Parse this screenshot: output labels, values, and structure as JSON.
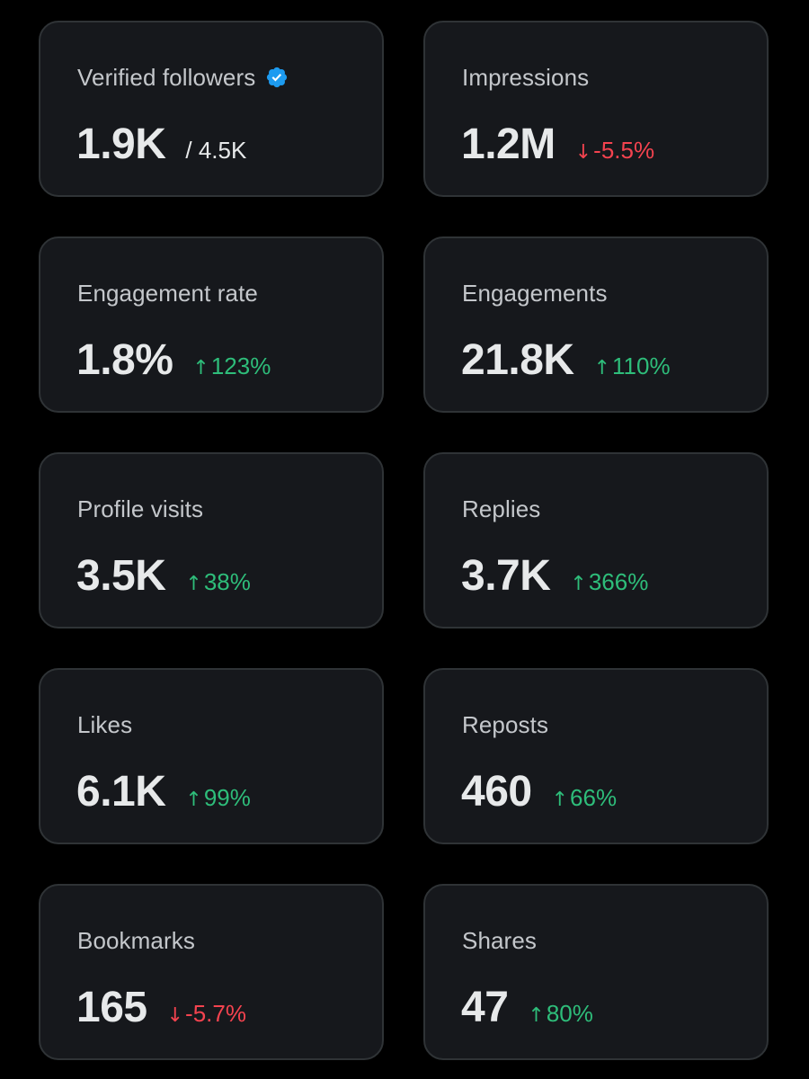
{
  "colors": {
    "background": "#000000",
    "card": "#16181c",
    "card_border": "#2f3336",
    "label": "#c4c7cb",
    "value": "#e7e9ea",
    "positive": "#2ebd7a",
    "negative": "#f4434f",
    "verified": "#1d9bf0"
  },
  "cards": [
    {
      "label": "Verified followers",
      "icon": "verified-badge-icon",
      "value": "1.9K",
      "total": "/ 4.5K"
    },
    {
      "label": "Impressions",
      "value": "1.2M",
      "arrow": "↓",
      "change": "-5.5%",
      "direction": "down"
    },
    {
      "label": "Engagement rate",
      "value": "1.8%",
      "arrow": "↑",
      "change": "123%",
      "direction": "up"
    },
    {
      "label": "Engagements",
      "value": "21.8K",
      "arrow": "↑",
      "change": "110%",
      "direction": "up"
    },
    {
      "label": "Profile visits",
      "value": "3.5K",
      "arrow": "↑",
      "change": "38%",
      "direction": "up"
    },
    {
      "label": "Replies",
      "value": "3.7K",
      "arrow": "↑",
      "change": "366%",
      "direction": "up"
    },
    {
      "label": "Likes",
      "value": "6.1K",
      "arrow": "↑",
      "change": "99%",
      "direction": "up"
    },
    {
      "label": "Reposts",
      "value": "460",
      "arrow": "↑",
      "change": "66%",
      "direction": "up"
    },
    {
      "label": "Bookmarks",
      "value": "165",
      "arrow": "↓",
      "change": "-5.7%",
      "direction": "down"
    },
    {
      "label": "Shares",
      "value": "47",
      "arrow": "↑",
      "change": "80%",
      "direction": "up"
    }
  ]
}
